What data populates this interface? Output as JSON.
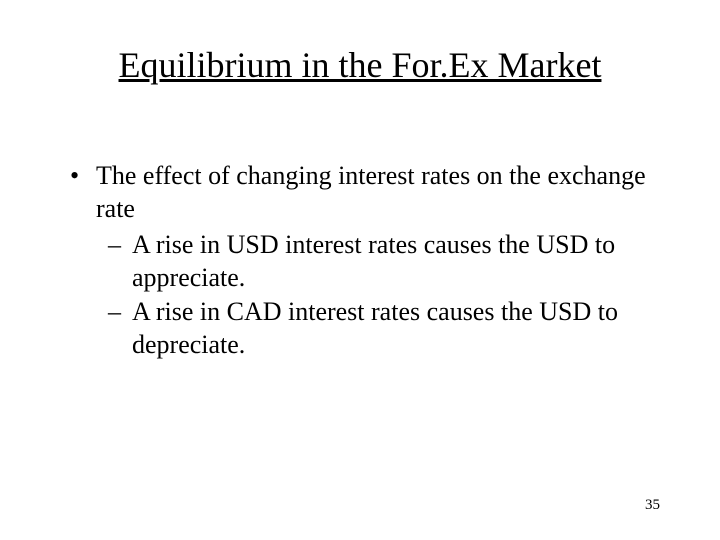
{
  "colors": {
    "background": "#ffffff",
    "text": "#000000"
  },
  "typography": {
    "font_family": "Times New Roman",
    "title_fontsize_pt": 36,
    "body_fontsize_pt": 26,
    "page_number_fontsize_pt": 15,
    "title_underline": true
  },
  "title": "Equilibrium in the For.Ex Market",
  "bullets": {
    "level1": {
      "marker": "•",
      "text": "The effect of changing interest rates on the exchange rate"
    },
    "level2": [
      {
        "marker": "–",
        "text": "A rise in USD interest rates causes the USD to appreciate."
      },
      {
        "marker": "–",
        "text": "A rise in CAD interest rates causes the USD to depreciate."
      }
    ]
  },
  "page_number": "35"
}
